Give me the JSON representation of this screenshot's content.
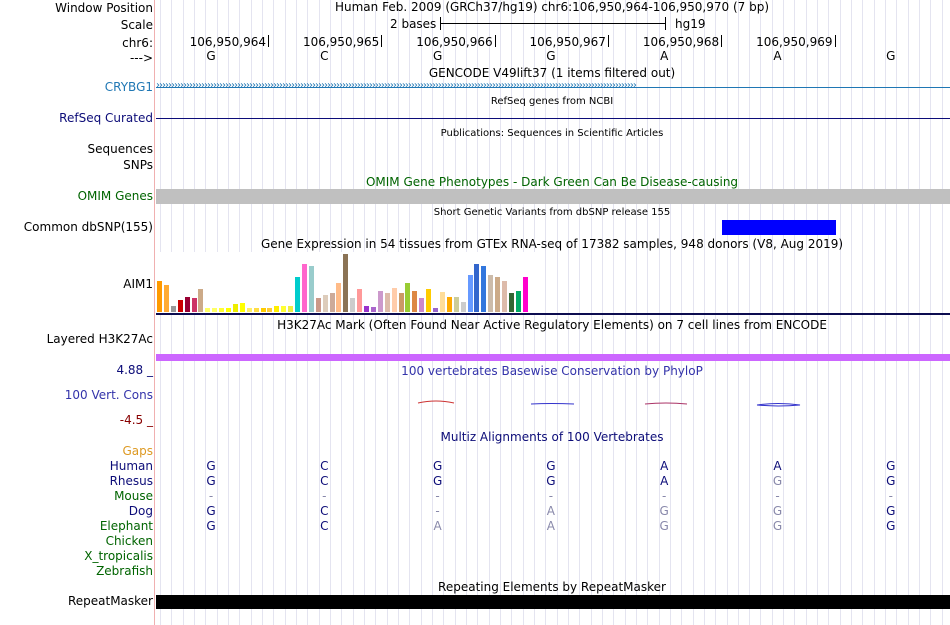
{
  "header": {
    "window_position_label": "Window Position",
    "window_position_value": "Human Feb. 2009 (GRCh37/hg19)   chr6:106,950,964-106,950,970 (7 bp)",
    "scale_label": "Scale",
    "scale_text": "2 bases",
    "scale_assembly": "hg19",
    "chrom_label": "chr6:",
    "strand_label": "--->",
    "positions": [
      "106,950,964",
      "106,950,965",
      "106,950,966",
      "106,950,967",
      "106,950,968",
      "106,950,969"
    ],
    "bases": [
      "G",
      "C",
      "G",
      "G",
      "A",
      "A",
      "G"
    ]
  },
  "tracks": {
    "gencode": {
      "title": "GENCODE V49lift37 (1 items filtered out)",
      "label": "CRYBG1",
      "color": "#1f77b4"
    },
    "refseq": {
      "title": "RefSeq genes from NCBI",
      "label": "RefSeq Curated",
      "color": "#0c0c78"
    },
    "publications": {
      "title": "Publications: Sequences in Scientific Articles",
      "label1": "Sequences",
      "label2": "SNPs"
    },
    "omim": {
      "title": "OMIM Gene Phenotypes - Dark Green Can Be Disease-causing",
      "label": "OMIM Genes",
      "color": "#006400"
    },
    "dbsnp": {
      "title": "Short Genetic Variants from dbSNP release 155",
      "label": "Common dbSNP(155)",
      "color": "#0000ff"
    },
    "gtex": {
      "title": "Gene Expression in 54 tissues from GTEx RNA-seq of 17382 samples, 948 donors (V8, Aug 2019)",
      "label": "AIM1",
      "bar_values": [
        32,
        28,
        6,
        12,
        16,
        14,
        24,
        4,
        4,
        4,
        4,
        8,
        9,
        4,
        4,
        4,
        4,
        6,
        6,
        6,
        36,
        50,
        48,
        14,
        18,
        20,
        30,
        60,
        14,
        24,
        6,
        5,
        22,
        20,
        25,
        20,
        30,
        22,
        14,
        24,
        4,
        21,
        16,
        16,
        10,
        38,
        50,
        48,
        38,
        36,
        32,
        20,
        22,
        36
      ],
      "bar_colors": [
        "#ff9900",
        "#ffaa33",
        "#999999",
        "#cc0000",
        "#990033",
        "#cc3366",
        "#ccaa88",
        "#ffff66",
        "#ffff66",
        "#ffff33",
        "#ffff00",
        "#eeee00",
        "#ffff00",
        "#ffee66",
        "#ffdd44",
        "#ffcc00",
        "#ffcc33",
        "#ffee00",
        "#ffff33",
        "#eeee44",
        "#00cccc",
        "#ff66cc",
        "#99cccc",
        "#cc9988",
        "#ddccbb",
        "#ccaa99",
        "#ffbb88",
        "#8b7355",
        "#cccccc",
        "#ff9999",
        "#9933cc",
        "#aa66cc",
        "#cc99cc",
        "#ddbbaa",
        "#ffccaa",
        "#cc9966",
        "#99cc33",
        "#dd8844",
        "#cc88cc",
        "#ffcc00",
        "#9966cc",
        "#ffdd99",
        "#ffaa00",
        "#cccc99",
        "#cccccc",
        "#6699ff",
        "#3366cc",
        "#3377dd",
        "#ccbbaa",
        "#ccaa88",
        "#ddbbaa",
        "#336633",
        "#00aa66",
        "#ff00cc"
      ]
    },
    "h3k27ac": {
      "title": "H3K27Ac Mark (Often Found Near Active Regulatory Elements) on 7 cell lines from ENCODE",
      "label": "Layered H3K27Ac",
      "color": "#cc66ff"
    },
    "phylop": {
      "title": "100 vertebrates Basewise Conservation by PhyloP",
      "label": "100 Vert. Cons",
      "max": "4.88 _",
      "min": "-4.5 _"
    },
    "multiz": {
      "title": "Multiz Alignments of 100 Vertebrates",
      "gaps_label": "Gaps",
      "species": [
        {
          "name": "Human",
          "bases": [
            "G",
            "C",
            "G",
            "G",
            "A",
            "A",
            "G"
          ],
          "color": "#0c0c78"
        },
        {
          "name": "Rhesus",
          "bases": [
            "G",
            "C",
            "G",
            "G",
            "A",
            "G",
            "G"
          ],
          "color": "#0c0c78"
        },
        {
          "name": "Mouse",
          "bases": [
            "-",
            "-",
            "-",
            "-",
            "-",
            "-",
            "-"
          ],
          "color": "#006400"
        },
        {
          "name": "Dog",
          "bases": [
            "G",
            "C",
            "-",
            "A",
            "G",
            "G",
            "G"
          ],
          "color": "#0c0c78"
        },
        {
          "name": "Elephant",
          "bases": [
            "G",
            "C",
            "A",
            "A",
            "G",
            "G",
            "G"
          ],
          "color": "#006400"
        },
        {
          "name": "Chicken",
          "bases": [],
          "color": "#006400"
        },
        {
          "name": "X_tropicalis",
          "bases": [],
          "color": "#006400"
        },
        {
          "name": "Zebrafish",
          "bases": [],
          "color": "#006400"
        }
      ]
    },
    "repeatmasker": {
      "title": "Repeating Elements by RepeatMasker",
      "label": "RepeatMasker"
    }
  }
}
